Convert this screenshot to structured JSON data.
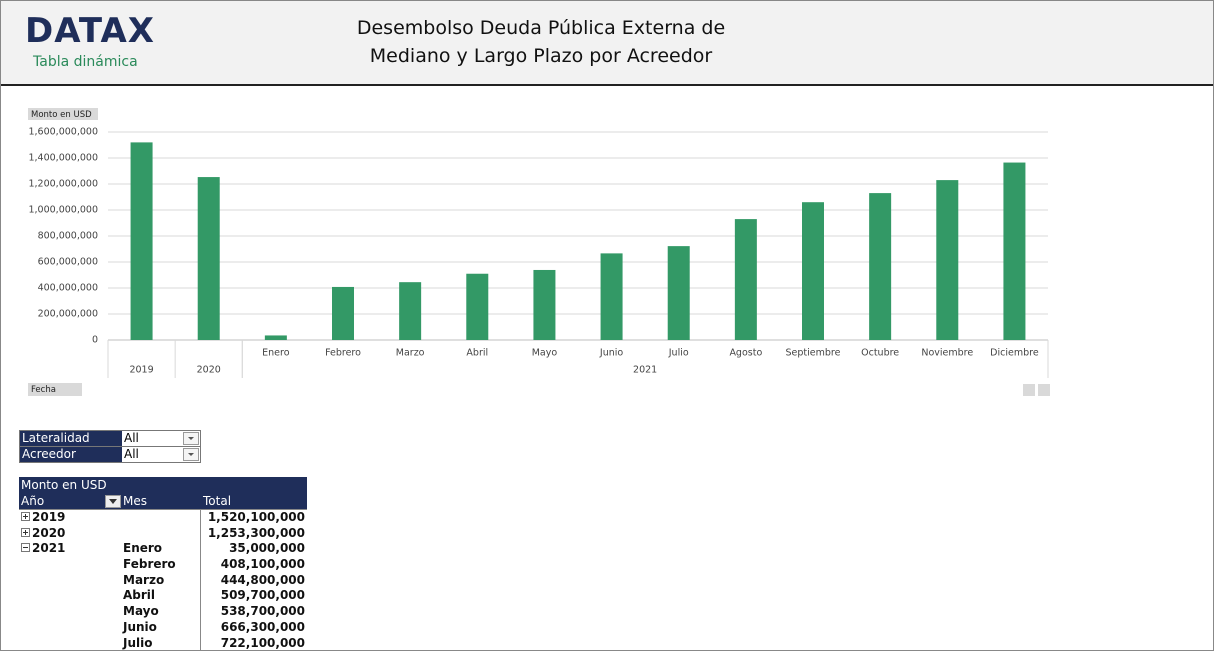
{
  "header": {
    "logo": "DATAX",
    "subtitle": "Tabla dinámica",
    "title_lines": [
      "Desembolso Deuda Pública Externa de",
      "Mediano y Largo Plazo por Acreedor"
    ]
  },
  "chart_data": {
    "type": "bar",
    "y_label": "Monto en USD",
    "filter_button": "Fecha",
    "categories": [
      null,
      null,
      "Enero",
      "Febrero",
      "Marzo",
      "Abril",
      "Mayo",
      "Junio",
      "Julio",
      "Agosto",
      "Septiembre",
      "Octubre",
      "Noviembre",
      "Diciembre"
    ],
    "years": [
      "2019",
      "2020",
      "2021",
      "2021",
      "2021",
      "2021",
      "2021",
      "2021",
      "2021",
      "2021",
      "2021",
      "2021",
      "2021",
      "2021"
    ],
    "values": [
      1520100000,
      1253300000,
      35000000,
      408100000,
      444800000,
      509700000,
      538700000,
      666300000,
      722100000,
      930000000,
      1060000000,
      1130000000,
      1230000000,
      1365000000
    ],
    "color": "#339966",
    "ylim": [
      0,
      1600000000
    ],
    "yticks": [
      0,
      {
        "value": 200000000,
        "label": "200,000,000"
      },
      {
        "value": 400000000,
        "label": "400,000,000"
      },
      {
        "value": 600000000,
        "label": "600,000,000"
      },
      {
        "value": 800000000,
        "label": "800,000,000"
      },
      {
        "value": 1000000000,
        "label": "1,000,000,000"
      },
      {
        "value": 1200000000,
        "label": "1,200,000,000"
      },
      {
        "value": 1400000000,
        "label": "1,400,000,000"
      },
      {
        "value": 1600000000,
        "label": "1,600,000,000"
      }
    ],
    "grid": true
  },
  "filters": [
    {
      "label": "Lateralidad",
      "value": "All"
    },
    {
      "label": "Acreedor",
      "value": "All"
    }
  ],
  "table": {
    "title": "Monto en USD",
    "columns": [
      "Año",
      "Mes",
      "Total"
    ],
    "rows": [
      {
        "year": "2019",
        "expanded": false,
        "total": "1,520,100,000"
      },
      {
        "year": "2020",
        "expanded": false,
        "total": "1,253,300,000"
      },
      {
        "year": "2021",
        "expanded": true,
        "month": "Enero",
        "total": "35,000,000"
      },
      {
        "month": "Febrero",
        "total": "408,100,000"
      },
      {
        "month": "Marzo",
        "total": "444,800,000"
      },
      {
        "month": "Abril",
        "total": "509,700,000"
      },
      {
        "month": "Mayo",
        "total": "538,700,000"
      },
      {
        "month": "Junio",
        "total": "666,300,000"
      },
      {
        "month": "Julio",
        "total": "722,100,000"
      }
    ]
  }
}
